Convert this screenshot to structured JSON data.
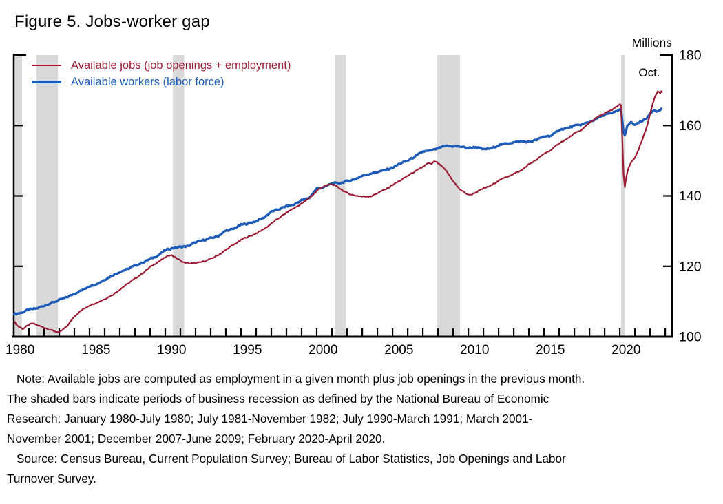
{
  "figure": {
    "title": "Figure 5. Jobs-worker gap"
  },
  "annotations": {
    "end_label": "Oct."
  },
  "notes": {
    "note_lines": [
      "Note: Available jobs are computed as employment in a given month plus job openings in the previous month.",
      "The shaded bars indicate periods of business recession as defined by the National Bureau of Economic",
      "Research: January 1980-July 1980; July 1981-November 1982; July 1990-March 1991; March 2001-",
      "November 2001; December 2007-June 2009; February 2020-April 2020."
    ],
    "source_lines": [
      "Source: Census Bureau, Current Population Survey; Bureau of Labor Statistics, Job Openings and Labor",
      "Turnover Survey."
    ]
  },
  "chart_data": {
    "type": "line",
    "title": "Figure 5. Jobs-worker gap",
    "unit": "Millions",
    "xlabel": "",
    "ylabel": "Millions",
    "x_range": [
      1980,
      2023.45
    ],
    "y_range": [
      100,
      180
    ],
    "y_ticks": [
      100,
      120,
      140,
      160,
      180
    ],
    "x_tick_first": 1980,
    "x_tick_last": 2023,
    "x_label_years": [
      1980,
      1985,
      1990,
      1995,
      2000,
      2005,
      2010,
      2015,
      2020
    ],
    "grid": false,
    "legend_position": "top-left",
    "axis_side": "right",
    "recession_color": "#d9d9d9",
    "recession_bands": [
      [
        1980.0,
        1980.54
      ],
      [
        1981.5,
        1982.92
      ],
      [
        1990.5,
        1991.25
      ],
      [
        2001.21,
        2001.92
      ],
      [
        2007.92,
        2009.46
      ],
      [
        2020.08,
        2020.33
      ]
    ],
    "series": [
      {
        "name": "Available jobs (job openings + employment)",
        "key": "jobs",
        "color": "#9c1b33",
        "line_width": 2.2,
        "jitter": 0.16,
        "points": [
          [
            1980.0,
            104.5
          ],
          [
            1980.25,
            103.1
          ],
          [
            1980.6,
            102.2
          ],
          [
            1981.0,
            103.4
          ],
          [
            1981.25,
            103.8
          ],
          [
            1981.6,
            103.2
          ],
          [
            1982.0,
            102.6
          ],
          [
            1982.5,
            101.8
          ],
          [
            1983.0,
            101.2
          ],
          [
            1983.5,
            102.9
          ],
          [
            1984.0,
            105.8
          ],
          [
            1984.5,
            107.6
          ],
          [
            1985.0,
            108.9
          ],
          [
            1985.5,
            109.7
          ],
          [
            1986.0,
            110.7
          ],
          [
            1986.5,
            111.8
          ],
          [
            1987.0,
            113.4
          ],
          [
            1987.5,
            115.0
          ],
          [
            1988.0,
            116.5
          ],
          [
            1988.5,
            118.0
          ],
          [
            1989.0,
            119.8
          ],
          [
            1989.5,
            121.2
          ],
          [
            1990.0,
            122.5
          ],
          [
            1990.35,
            123.3
          ],
          [
            1990.75,
            122.3
          ],
          [
            1991.2,
            121.1
          ],
          [
            1991.7,
            120.8
          ],
          [
            1992.2,
            121.0
          ],
          [
            1992.7,
            121.6
          ],
          [
            1993.2,
            122.5
          ],
          [
            1993.7,
            123.7
          ],
          [
            1994.2,
            125.3
          ],
          [
            1994.7,
            126.6
          ],
          [
            1995.2,
            128.0
          ],
          [
            1995.7,
            128.7
          ],
          [
            1996.2,
            129.8
          ],
          [
            1996.7,
            131.1
          ],
          [
            1997.2,
            132.8
          ],
          [
            1997.7,
            134.3
          ],
          [
            1998.2,
            135.8
          ],
          [
            1998.7,
            137.0
          ],
          [
            1999.2,
            138.4
          ],
          [
            1999.7,
            140.1
          ],
          [
            2000.2,
            142.2
          ],
          [
            2000.6,
            142.9
          ],
          [
            2000.95,
            143.4
          ],
          [
            2001.4,
            142.5
          ],
          [
            2001.9,
            141.0
          ],
          [
            2002.4,
            140.2
          ],
          [
            2003.0,
            139.8
          ],
          [
            2003.6,
            139.9
          ],
          [
            2004.1,
            141.0
          ],
          [
            2004.6,
            142.0
          ],
          [
            2005.1,
            143.4
          ],
          [
            2005.6,
            144.6
          ],
          [
            2006.1,
            146.0
          ],
          [
            2006.6,
            147.2
          ],
          [
            2007.1,
            148.5
          ],
          [
            2007.35,
            149.3
          ],
          [
            2007.55,
            149.0
          ],
          [
            2007.8,
            149.9
          ],
          [
            2008.1,
            148.9
          ],
          [
            2008.5,
            147.4
          ],
          [
            2009.0,
            144.2
          ],
          [
            2009.4,
            142.0
          ],
          [
            2009.8,
            140.8
          ],
          [
            2010.1,
            140.2
          ],
          [
            2010.5,
            141.0
          ],
          [
            2011.0,
            142.1
          ],
          [
            2011.5,
            142.9
          ],
          [
            2012.0,
            144.4
          ],
          [
            2012.5,
            145.3
          ],
          [
            2013.0,
            146.3
          ],
          [
            2013.5,
            147.2
          ],
          [
            2014.0,
            149.0
          ],
          [
            2014.5,
            150.2
          ],
          [
            2015.0,
            152.0
          ],
          [
            2015.5,
            153.1
          ],
          [
            2016.0,
            155.0
          ],
          [
            2016.5,
            156.1
          ],
          [
            2017.0,
            157.7
          ],
          [
            2017.5,
            158.8
          ],
          [
            2018.0,
            160.8
          ],
          [
            2018.5,
            162.3
          ],
          [
            2019.0,
            163.5
          ],
          [
            2019.5,
            164.4
          ],
          [
            2019.83,
            165.5
          ],
          [
            2020.08,
            166.2
          ],
          [
            2020.29,
            141.2
          ],
          [
            2020.45,
            146.0
          ],
          [
            2020.6,
            148.3
          ],
          [
            2020.8,
            149.8
          ],
          [
            2021.0,
            150.9
          ],
          [
            2021.2,
            152.6
          ],
          [
            2021.4,
            155.0
          ],
          [
            2021.6,
            157.3
          ],
          [
            2021.8,
            159.8
          ],
          [
            2022.0,
            163.3
          ],
          [
            2022.15,
            165.8
          ],
          [
            2022.3,
            167.8
          ],
          [
            2022.45,
            169.3
          ],
          [
            2022.55,
            169.8
          ],
          [
            2022.65,
            168.9
          ],
          [
            2022.72,
            169.9
          ],
          [
            2022.79,
            169.3
          ]
        ]
      },
      {
        "name": "Available workers (labor force)",
        "key": "workers",
        "color": "#1c5cb8",
        "line_width": 3.4,
        "jitter": 0.22,
        "points": [
          [
            1980.0,
            106.4
          ],
          [
            1980.5,
            106.8
          ],
          [
            1981.0,
            107.7
          ],
          [
            1981.5,
            108.0
          ],
          [
            1982.0,
            108.8
          ],
          [
            1982.5,
            109.6
          ],
          [
            1983.0,
            110.4
          ],
          [
            1983.5,
            111.2
          ],
          [
            1984.0,
            112.2
          ],
          [
            1984.5,
            113.2
          ],
          [
            1985.0,
            114.4
          ],
          [
            1985.5,
            115.0
          ],
          [
            1986.0,
            116.2
          ],
          [
            1986.5,
            117.4
          ],
          [
            1987.0,
            118.4
          ],
          [
            1987.5,
            119.2
          ],
          [
            1988.0,
            120.2
          ],
          [
            1988.5,
            121.0
          ],
          [
            1989.0,
            122.1
          ],
          [
            1989.5,
            123.0
          ],
          [
            1990.0,
            124.6
          ],
          [
            1990.5,
            125.2
          ],
          [
            1991.0,
            125.5
          ],
          [
            1991.5,
            125.7
          ],
          [
            1992.0,
            126.8
          ],
          [
            1992.5,
            127.4
          ],
          [
            1993.0,
            128.0
          ],
          [
            1993.5,
            128.6
          ],
          [
            1994.0,
            130.1
          ],
          [
            1994.5,
            130.6
          ],
          [
            1995.0,
            131.8
          ],
          [
            1995.5,
            132.2
          ],
          [
            1996.0,
            132.8
          ],
          [
            1996.5,
            133.8
          ],
          [
            1997.0,
            135.5
          ],
          [
            1997.5,
            136.2
          ],
          [
            1998.0,
            137.1
          ],
          [
            1998.5,
            137.5
          ],
          [
            1999.0,
            138.8
          ],
          [
            1999.5,
            139.4
          ],
          [
            2000.0,
            142.1
          ],
          [
            2000.5,
            142.5
          ],
          [
            2001.0,
            143.6
          ],
          [
            2001.5,
            143.6
          ],
          [
            2002.0,
            144.2
          ],
          [
            2002.5,
            144.7
          ],
          [
            2003.0,
            145.7
          ],
          [
            2003.5,
            146.3
          ],
          [
            2004.0,
            146.8
          ],
          [
            2004.5,
            147.3
          ],
          [
            2005.0,
            148.0
          ],
          [
            2005.5,
            149.2
          ],
          [
            2006.0,
            150.0
          ],
          [
            2006.5,
            151.2
          ],
          [
            2007.0,
            152.6
          ],
          [
            2007.5,
            152.8
          ],
          [
            2008.0,
            153.5
          ],
          [
            2008.5,
            154.2
          ],
          [
            2009.0,
            154.1
          ],
          [
            2009.5,
            154.0
          ],
          [
            2010.0,
            153.6
          ],
          [
            2010.5,
            153.9
          ],
          [
            2011.0,
            153.2
          ],
          [
            2011.5,
            153.5
          ],
          [
            2012.0,
            154.4
          ],
          [
            2012.5,
            154.9
          ],
          [
            2013.0,
            155.2
          ],
          [
            2013.5,
            155.5
          ],
          [
            2014.0,
            155.3
          ],
          [
            2014.5,
            155.9
          ],
          [
            2015.0,
            156.9
          ],
          [
            2015.5,
            157.1
          ],
          [
            2016.0,
            158.8
          ],
          [
            2016.5,
            159.2
          ],
          [
            2017.0,
            159.9
          ],
          [
            2017.5,
            160.3
          ],
          [
            2018.0,
            161.0
          ],
          [
            2018.5,
            162.0
          ],
          [
            2019.0,
            163.1
          ],
          [
            2019.5,
            163.5
          ],
          [
            2019.83,
            164.2
          ],
          [
            2020.08,
            164.6
          ],
          [
            2020.29,
            156.5
          ],
          [
            2020.5,
            159.9
          ],
          [
            2020.7,
            160.9
          ],
          [
            2021.0,
            160.2
          ],
          [
            2021.25,
            160.7
          ],
          [
            2021.5,
            161.3
          ],
          [
            2021.75,
            161.8
          ],
          [
            2022.0,
            163.6
          ],
          [
            2022.25,
            164.1
          ],
          [
            2022.5,
            163.9
          ],
          [
            2022.6,
            164.2
          ],
          [
            2022.79,
            164.7
          ]
        ]
      }
    ]
  }
}
